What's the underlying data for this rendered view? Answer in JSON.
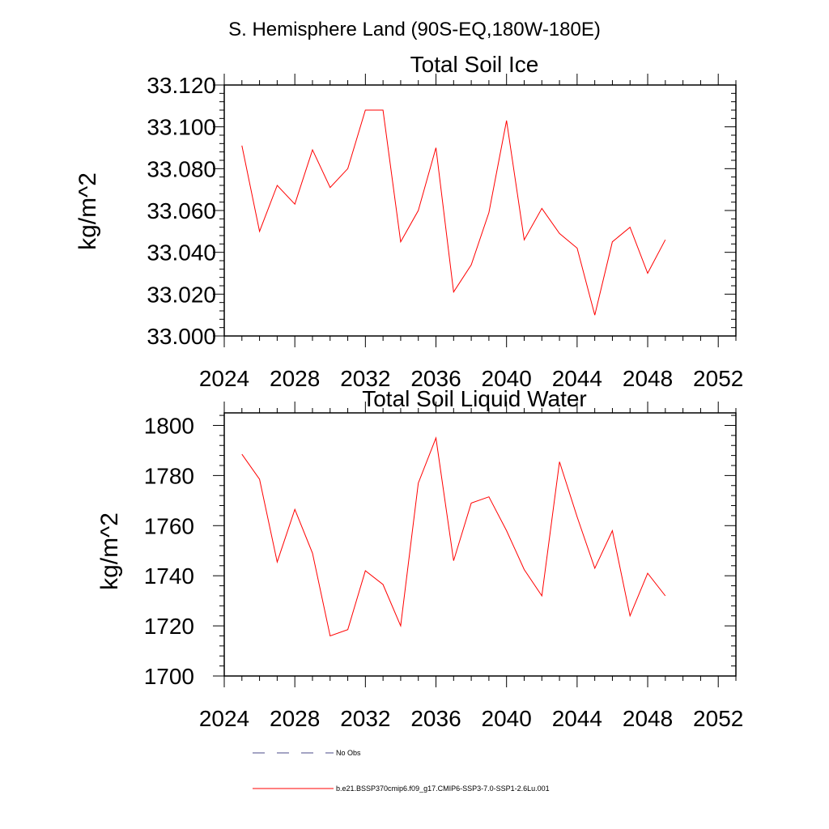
{
  "page": {
    "title": "S. Hemisphere Land (90S-EQ,180W-180E)"
  },
  "chart_data": [
    {
      "type": "line",
      "title": "Total Soil Ice",
      "xlabel": "",
      "ylabel": "kg/m^2",
      "xlim": [
        2024,
        2053
      ],
      "ylim": [
        33.0,
        33.12
      ],
      "xticks": [
        "2024",
        "2028",
        "2032",
        "2036",
        "2040",
        "2044",
        "2048",
        "2052"
      ],
      "yticks": [
        "33.000",
        "33.020",
        "33.040",
        "33.060",
        "33.080",
        "33.100",
        "33.120"
      ],
      "series": [
        {
          "name": "b.e21.BSSP370cmip6.f09_g17.CMIP6-SSP3-7.0-SSP1-2.6Lu.001",
          "color": "#ff0000",
          "x": [
            2025,
            2026,
            2027,
            2028,
            2029,
            2030,
            2031,
            2032,
            2033,
            2034,
            2035,
            2036,
            2037,
            2038,
            2039,
            2040,
            2041,
            2042,
            2043,
            2044,
            2045,
            2046,
            2047,
            2048,
            2049
          ],
          "y": [
            33.091,
            33.05,
            33.072,
            33.063,
            33.089,
            33.071,
            33.08,
            33.108,
            33.108,
            33.045,
            33.06,
            33.09,
            33.021,
            33.034,
            33.059,
            33.103,
            33.046,
            33.061,
            33.049,
            33.042,
            33.01,
            33.045,
            33.052,
            33.03,
            33.046
          ]
        }
      ]
    },
    {
      "type": "line",
      "title": "Total Soil Liquid Water",
      "xlabel": "",
      "ylabel": "kg/m^2",
      "xlim": [
        2024,
        2053
      ],
      "ylim": [
        1700,
        1805
      ],
      "xticks": [
        "2024",
        "2028",
        "2032",
        "2036",
        "2040",
        "2044",
        "2048",
        "2052"
      ],
      "yticks": [
        "1700",
        "1720",
        "1740",
        "1760",
        "1780",
        "1800"
      ],
      "series": [
        {
          "name": "b.e21.BSSP370cmip6.f09_g17.CMIP6-SSP3-7.0-SSP1-2.6Lu.001",
          "color": "#ff0000",
          "x": [
            2025,
            2026,
            2027,
            2028,
            2029,
            2030,
            2031,
            2032,
            2033,
            2034,
            2035,
            2036,
            2037,
            2038,
            2039,
            2040,
            2041,
            2042,
            2043,
            2044,
            2045,
            2046,
            2047,
            2048,
            2049
          ],
          "y": [
            1788.5,
            1778.5,
            1745.5,
            1766.5,
            1749,
            1716,
            1718.5,
            1742,
            1736.5,
            1720,
            1777,
            1795,
            1746,
            1769,
            1771.5,
            1758,
            1742.5,
            1732,
            1785.5,
            1763.5,
            1743,
            1758,
            1724,
            1741,
            1732
          ]
        }
      ]
    }
  ],
  "legend": [
    {
      "label": "No Obs",
      "style": "dashed",
      "color": "#4a4a8a"
    },
    {
      "label": "b.e21.BSSP370cmip6.f09_g17.CMIP6-SSP3-7.0-SSP1-2.6Lu.001",
      "style": "solid",
      "color": "#ff0000"
    }
  ]
}
